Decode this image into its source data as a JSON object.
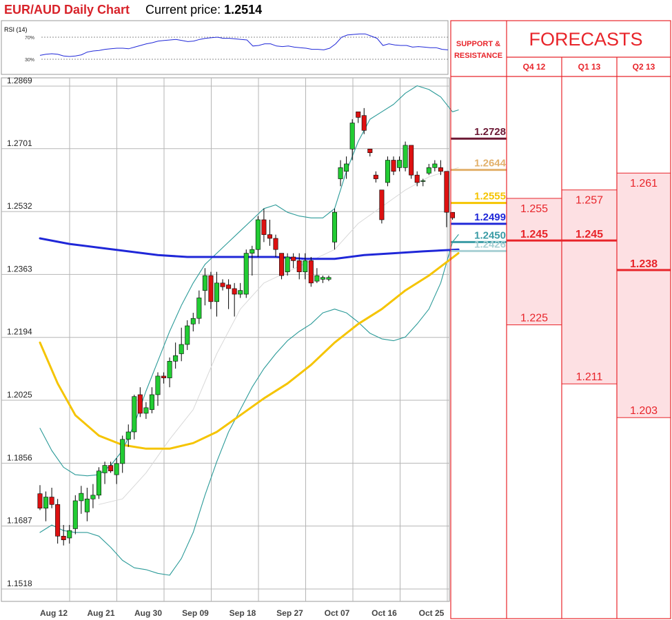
{
  "header": {
    "title": "EUR/AUD Daily Chart",
    "price_label": "Current price: ",
    "price_value": "1.2514"
  },
  "colors": {
    "title": "#d8232a",
    "up_candle": "#22cc33",
    "down_candle": "#dd1111",
    "bollinger": "#2a9a98",
    "ma_blue": "#1f27d8",
    "ma_yellow": "#f5c400",
    "ma_grey": "#d8d8d8",
    "forecast_red": "#e8242a",
    "forecast_fill": "#fde0e3"
  },
  "rsi": {
    "label": "RSI (14)",
    "levels": [
      {
        "value": 70,
        "label": "70%"
      },
      {
        "value": 30,
        "label": "30%"
      }
    ],
    "values": [
      37,
      39,
      40,
      39,
      36,
      35,
      36,
      38,
      43,
      45,
      46,
      48,
      49,
      50,
      50,
      49,
      52,
      55,
      58,
      60,
      63,
      64,
      65,
      66,
      64,
      62,
      63,
      66,
      68,
      69,
      70,
      68,
      68,
      67,
      66,
      65,
      54,
      55,
      58,
      58,
      54,
      53,
      54,
      52,
      51,
      50,
      48,
      48,
      47,
      50,
      58,
      70,
      74,
      75,
      76,
      76,
      72,
      68,
      55,
      58,
      56,
      55,
      55,
      52,
      53,
      52,
      51,
      51,
      48,
      47
    ]
  },
  "chart_data": {
    "type": "candlestick",
    "title": "EUR/AUD Daily Chart",
    "current_price": 1.2514,
    "ylim": [
      1.1518,
      1.2869
    ],
    "y_ticks": [
      "1.2869",
      "1.2701",
      "1.2532",
      "1.2363",
      "1.2194",
      "1.2025",
      "1.1856",
      "1.1687",
      "1.1518"
    ],
    "x_ticks": [
      "Aug 12",
      "Aug 21",
      "Aug 30",
      "Sep 09",
      "Sep 18",
      "Sep 27",
      "Oct 07",
      "Oct 16",
      "Oct 25"
    ],
    "ohlc": [
      [
        1.1774,
        1.1797,
        1.173,
        1.1735
      ],
      [
        1.1735,
        1.178,
        1.17,
        1.1765
      ],
      [
        1.1765,
        1.179,
        1.1735,
        1.1745
      ],
      [
        1.1745,
        1.176,
        1.164,
        1.166
      ],
      [
        1.166,
        1.169,
        1.1635,
        1.165
      ],
      [
        1.1655,
        1.169,
        1.164,
        1.1675
      ],
      [
        1.168,
        1.177,
        1.1665,
        1.1755
      ],
      [
        1.1755,
        1.1795,
        1.172,
        1.1775
      ],
      [
        1.1725,
        1.179,
        1.17,
        1.176
      ],
      [
        1.176,
        1.18,
        1.1735,
        1.177
      ],
      [
        1.177,
        1.1845,
        1.176,
        1.1835
      ],
      [
        1.183,
        1.186,
        1.18,
        1.185
      ],
      [
        1.185,
        1.186,
        1.183,
        1.1835
      ],
      [
        1.1825,
        1.187,
        1.18,
        1.1855
      ],
      [
        1.1855,
        1.193,
        1.183,
        1.192
      ],
      [
        1.192,
        1.196,
        1.19,
        1.194
      ],
      [
        1.194,
        1.204,
        1.192,
        1.2035
      ],
      [
        1.204,
        1.206,
        1.198,
        1.199
      ],
      [
        1.199,
        1.202,
        1.1975,
        1.2005
      ],
      [
        1.2,
        1.206,
        1.199,
        1.204
      ],
      [
        1.204,
        1.21,
        1.201,
        1.209
      ],
      [
        1.209,
        1.21,
        1.207,
        1.2085
      ],
      [
        1.2085,
        1.214,
        1.206,
        1.213
      ],
      [
        1.213,
        1.218,
        1.211,
        1.2145
      ],
      [
        1.215,
        1.222,
        1.213,
        1.2175
      ],
      [
        1.2175,
        1.224,
        1.216,
        1.2225
      ],
      [
        1.223,
        1.226,
        1.221,
        1.2245
      ],
      [
        1.2245,
        1.232,
        1.223,
        1.23
      ],
      [
        1.232,
        1.238,
        1.228,
        1.236
      ],
      [
        1.236,
        1.237,
        1.227,
        1.229
      ],
      [
        1.229,
        1.237,
        1.225,
        1.234
      ],
      [
        1.234,
        1.235,
        1.232,
        1.233
      ],
      [
        1.2335,
        1.235,
        1.227,
        1.2325
      ],
      [
        1.2325,
        1.234,
        1.225,
        1.231
      ],
      [
        1.231,
        1.234,
        1.23,
        1.232
      ],
      [
        1.231,
        1.243,
        1.23,
        1.242
      ],
      [
        1.242,
        1.244,
        1.236,
        1.243
      ],
      [
        1.243,
        1.252,
        1.241,
        1.251
      ],
      [
        1.251,
        1.254,
        1.245,
        1.247
      ],
      [
        1.247,
        1.251,
        1.244,
        1.246
      ],
      [
        1.246,
        1.247,
        1.241,
        1.243
      ],
      [
        1.242,
        1.242,
        1.235,
        1.236
      ],
      [
        1.237,
        1.242,
        1.236,
        1.241
      ],
      [
        1.241,
        1.242,
        1.238,
        1.24
      ],
      [
        1.24,
        1.242,
        1.235,
        1.237
      ],
      [
        1.237,
        1.242,
        1.235,
        1.24
      ],
      [
        1.24,
        1.241,
        1.233,
        1.234
      ],
      [
        1.2345,
        1.238,
        1.234,
        1.236
      ],
      [
        1.235,
        1.236,
        1.234,
        1.2355
      ],
      [
        1.235,
        1.236,
        1.2345,
        1.2355
      ],
      [
        1.245,
        1.254,
        1.243,
        1.253
      ],
      [
        1.262,
        1.267,
        1.26,
        1.265
      ],
      [
        1.264,
        1.268,
        1.262,
        1.266
      ],
      [
        1.27,
        1.278,
        1.267,
        1.277
      ],
      [
        1.28,
        1.28,
        1.277,
        1.2785
      ],
      [
        1.279,
        1.281,
        1.274,
        1.275
      ],
      [
        1.27,
        1.27,
        1.268,
        1.269
      ],
      [
        1.263,
        1.264,
        1.261,
        1.262
      ],
      [
        1.259,
        1.259,
        1.25,
        1.251
      ],
      [
        1.261,
        1.268,
        1.26,
        1.267
      ],
      [
        1.267,
        1.268,
        1.263,
        1.264
      ],
      [
        1.265,
        1.268,
        1.264,
        1.267
      ],
      [
        1.265,
        1.272,
        1.264,
        1.271
      ],
      [
        1.271,
        1.271,
        1.262,
        1.263
      ],
      [
        1.263,
        1.264,
        1.26,
        1.261
      ],
      [
        1.2615,
        1.262,
        1.26,
        1.2615
      ],
      [
        1.2635,
        1.266,
        1.263,
        1.265
      ],
      [
        1.265,
        1.267,
        1.264,
        1.266
      ],
      [
        1.265,
        1.267,
        1.263,
        1.264
      ],
      [
        1.264,
        1.264,
        1.249,
        1.253
      ],
      [
        1.253,
        1.253,
        1.251,
        1.2515
      ]
    ],
    "overlays": [
      {
        "name": "bollinger_upper",
        "color": "#2a9a98",
        "points": [
          [
            0,
            1.195
          ],
          [
            2,
            1.189
          ],
          [
            4,
            1.1845
          ],
          [
            6,
            1.1825
          ],
          [
            8,
            1.1822
          ],
          [
            10,
            1.1825
          ],
          [
            12,
            1.185
          ],
          [
            14,
            1.189
          ],
          [
            16,
            1.196
          ],
          [
            18,
            1.205
          ],
          [
            20,
            1.213
          ],
          [
            22,
            1.221
          ],
          [
            24,
            1.228
          ],
          [
            26,
            1.234
          ],
          [
            28,
            1.239
          ],
          [
            30,
            1.242
          ],
          [
            32,
            1.245
          ],
          [
            34,
            1.248
          ],
          [
            36,
            1.251
          ],
          [
            38,
            1.254
          ],
          [
            40,
            1.255
          ],
          [
            42,
            1.253
          ],
          [
            44,
            1.252
          ],
          [
            46,
            1.2515
          ],
          [
            48,
            1.2515
          ],
          [
            50,
            1.254
          ],
          [
            52,
            1.264
          ],
          [
            54,
            1.272
          ],
          [
            56,
            1.278
          ],
          [
            58,
            1.28
          ],
          [
            60,
            1.282
          ],
          [
            62,
            1.285
          ],
          [
            64,
            1.287
          ],
          [
            66,
            1.286
          ],
          [
            68,
            1.284
          ],
          [
            70,
            1.28
          ],
          [
            71,
            1.2805
          ]
        ]
      },
      {
        "name": "bollinger_lower",
        "color": "#2a9a98",
        "points": [
          [
            0,
            1.167
          ],
          [
            2,
            1.169
          ],
          [
            4,
            1.1675
          ],
          [
            6,
            1.167
          ],
          [
            8,
            1.167
          ],
          [
            10,
            1.166
          ],
          [
            12,
            1.163
          ],
          [
            14,
            1.1595
          ],
          [
            16,
            1.1575
          ],
          [
            18,
            1.157
          ],
          [
            20,
            1.156
          ],
          [
            22,
            1.1555
          ],
          [
            24,
            1.16
          ],
          [
            26,
            1.167
          ],
          [
            28,
            1.177
          ],
          [
            30,
            1.186
          ],
          [
            32,
            1.194
          ],
          [
            34,
            1.2
          ],
          [
            36,
            1.206
          ],
          [
            38,
            1.211
          ],
          [
            40,
            1.215
          ],
          [
            42,
            1.2185
          ],
          [
            44,
            1.221
          ],
          [
            46,
            1.223
          ],
          [
            48,
            1.226
          ],
          [
            50,
            1.227
          ],
          [
            52,
            1.226
          ],
          [
            54,
            1.2235
          ],
          [
            56,
            1.2205
          ],
          [
            58,
            1.219
          ],
          [
            60,
            1.2185
          ],
          [
            62,
            1.2195
          ],
          [
            64,
            1.223
          ],
          [
            66,
            1.227
          ],
          [
            68,
            1.234
          ],
          [
            70,
            1.245
          ],
          [
            71,
            1.247
          ]
        ]
      },
      {
        "name": "ma_grey",
        "color": "#d8d8d8",
        "points": [
          [
            10,
            1.1745
          ],
          [
            14,
            1.176
          ],
          [
            18,
            1.183
          ],
          [
            22,
            1.192
          ],
          [
            26,
            1.2
          ],
          [
            30,
            1.215
          ],
          [
            34,
            1.227
          ],
          [
            38,
            1.234
          ],
          [
            42,
            1.237
          ],
          [
            46,
            1.24
          ],
          [
            50,
            1.243
          ],
          [
            54,
            1.25
          ],
          [
            58,
            1.2545
          ],
          [
            62,
            1.259
          ],
          [
            66,
            1.2625
          ],
          [
            71,
            1.265
          ]
        ]
      },
      {
        "name": "ma_blue",
        "color": "#1f27d8",
        "points": [
          [
            0,
            1.246
          ],
          [
            5,
            1.2445
          ],
          [
            10,
            1.2435
          ],
          [
            15,
            1.2425
          ],
          [
            20,
            1.2415
          ],
          [
            25,
            1.241
          ],
          [
            30,
            1.241
          ],
          [
            35,
            1.241
          ],
          [
            40,
            1.241
          ],
          [
            45,
            1.2405
          ],
          [
            50,
            1.2405
          ],
          [
            55,
            1.2415
          ],
          [
            60,
            1.242
          ],
          [
            65,
            1.2425
          ],
          [
            71,
            1.243
          ]
        ]
      },
      {
        "name": "ma_yellow",
        "color": "#f5c400",
        "points": [
          [
            0,
            1.218
          ],
          [
            3,
            1.207
          ],
          [
            6,
            1.1985
          ],
          [
            10,
            1.193
          ],
          [
            14,
            1.1905
          ],
          [
            18,
            1.1895
          ],
          [
            22,
            1.1895
          ],
          [
            26,
            1.191
          ],
          [
            30,
            1.194
          ],
          [
            34,
            1.1985
          ],
          [
            38,
            1.203
          ],
          [
            42,
            1.207
          ],
          [
            46,
            1.212
          ],
          [
            50,
            1.218
          ],
          [
            54,
            1.223
          ],
          [
            58,
            1.227
          ],
          [
            62,
            1.232
          ],
          [
            66,
            1.236
          ],
          [
            71,
            1.242
          ]
        ]
      }
    ],
    "support_resistance": [
      {
        "value": "1.2728",
        "color": "#6b1834"
      },
      {
        "value": "1.2644",
        "color": "#e2b16c"
      },
      {
        "value": "1.2555",
        "color": "#f5c400"
      },
      {
        "value": "1.2499",
        "color": "#1f27d8"
      },
      {
        "value": "1.2450",
        "color": "#3a9ba5"
      },
      {
        "value": "1.2426",
        "color": "#a8d0d4"
      }
    ]
  },
  "panel": {
    "sr_heading_line1": "SUPPORT &",
    "sr_heading_line2": "RESISTANCE",
    "forecasts_title": "FORECASTS",
    "columns": [
      {
        "label": "Q4 12",
        "high": "1.255",
        "mid": "1.245",
        "low": "1.225",
        "high_val": 1.255,
        "mid_val": 1.245,
        "low_val": 1.225
      },
      {
        "label": "Q1 13",
        "high": "1.257",
        "mid": "1.245",
        "low": "1.211",
        "high_val": 1.257,
        "mid_val": 1.245,
        "low_val": 1.211
      },
      {
        "label": "Q2 13",
        "high": "1.261",
        "mid": "1.238",
        "low": "1.203",
        "high_val": 1.261,
        "mid_val": 1.238,
        "low_val": 1.203
      }
    ]
  }
}
